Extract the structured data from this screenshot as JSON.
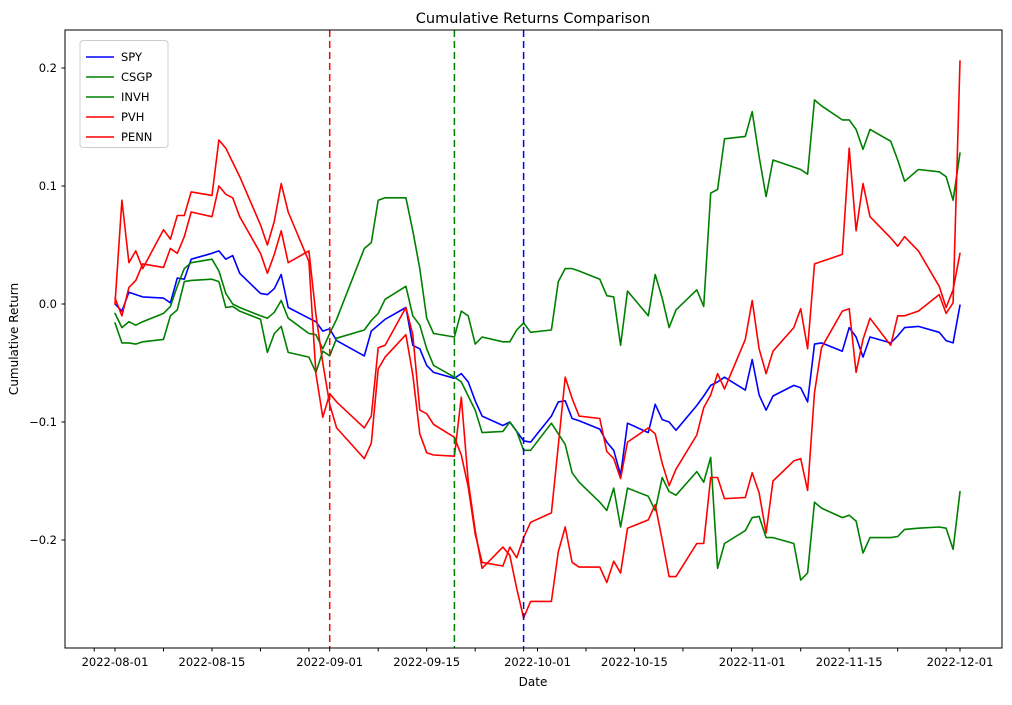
{
  "figure": {
    "title": "Cumulative Returns Comparison"
  },
  "chart_data": {
    "type": "line",
    "title": "Cumulative Returns Comparison",
    "xlabel": "Date",
    "ylabel": "Cumulative Return",
    "grid": false,
    "legend_position": "upper-left",
    "ylim": [
      -0.291,
      0.2304
    ],
    "xlim": [
      "2022-07-25",
      "2022-12-07"
    ],
    "yticks": [
      -0.2,
      -0.1,
      0.0,
      0.1,
      0.2
    ],
    "xticks_labeled": [
      "2022-08-01",
      "2022-08-15",
      "2022-09-01",
      "2022-09-15",
      "2022-10-01",
      "2022-10-15",
      "2022-11-01",
      "2022-11-15",
      "2022-12-01"
    ],
    "minor_tick_monthdays": [
      1,
      8,
      15,
      22,
      29
    ],
    "x": [
      "2022-08-01",
      "2022-08-02",
      "2022-08-03",
      "2022-08-04",
      "2022-08-05",
      "2022-08-08",
      "2022-08-09",
      "2022-08-10",
      "2022-08-11",
      "2022-08-12",
      "2022-08-15",
      "2022-08-16",
      "2022-08-17",
      "2022-08-18",
      "2022-08-19",
      "2022-08-22",
      "2022-08-23",
      "2022-08-24",
      "2022-08-25",
      "2022-08-26",
      "2022-08-29",
      "2022-08-30",
      "2022-08-31",
      "2022-09-01",
      "2022-09-02",
      "2022-09-06",
      "2022-09-07",
      "2022-09-08",
      "2022-09-09",
      "2022-09-12",
      "2022-09-13",
      "2022-09-14",
      "2022-09-15",
      "2022-09-16",
      "2022-09-19",
      "2022-09-20",
      "2022-09-21",
      "2022-09-22",
      "2022-09-23",
      "2022-09-26",
      "2022-09-27",
      "2022-09-28",
      "2022-09-29",
      "2022-09-30",
      "2022-10-03",
      "2022-10-04",
      "2022-10-05",
      "2022-10-06",
      "2022-10-07",
      "2022-10-10",
      "2022-10-11",
      "2022-10-12",
      "2022-10-13",
      "2022-10-14",
      "2022-10-17",
      "2022-10-18",
      "2022-10-19",
      "2022-10-20",
      "2022-10-21",
      "2022-10-24",
      "2022-10-25",
      "2022-10-26",
      "2022-10-27",
      "2022-10-28",
      "2022-10-31",
      "2022-11-01",
      "2022-11-02",
      "2022-11-03",
      "2022-11-04",
      "2022-11-07",
      "2022-11-08",
      "2022-11-09",
      "2022-11-10",
      "2022-11-11",
      "2022-11-14",
      "2022-11-15",
      "2022-11-16",
      "2022-11-17",
      "2022-11-18",
      "2022-11-21",
      "2022-11-22",
      "2022-11-23",
      "2022-11-25",
      "2022-11-28",
      "2022-11-29",
      "2022-11-30",
      "2022-12-01"
    ],
    "series": [
      {
        "name": "SPY",
        "color": "#0000ff",
        "values": [
          0.0,
          -0.006,
          0.01,
          0.008,
          0.006,
          0.005,
          0.001,
          0.022,
          0.021,
          0.038,
          0.043,
          0.045,
          0.038,
          0.041,
          0.026,
          0.009,
          0.008,
          0.013,
          0.025,
          -0.003,
          -0.012,
          -0.015,
          -0.023,
          -0.021,
          -0.031,
          -0.044,
          -0.023,
          -0.018,
          -0.013,
          -0.003,
          -0.035,
          -0.038,
          -0.052,
          -0.058,
          -0.063,
          -0.059,
          -0.066,
          -0.082,
          -0.095,
          -0.103,
          -0.1,
          -0.108,
          -0.116,
          -0.117,
          -0.095,
          -0.083,
          -0.082,
          -0.097,
          -0.099,
          -0.106,
          -0.117,
          -0.124,
          -0.145,
          -0.101,
          -0.109,
          -0.085,
          -0.098,
          -0.1,
          -0.107,
          -0.086,
          -0.078,
          -0.069,
          -0.066,
          -0.062,
          -0.073,
          -0.047,
          -0.077,
          -0.09,
          -0.078,
          -0.069,
          -0.071,
          -0.083,
          -0.034,
          -0.033,
          -0.04,
          -0.02,
          -0.028,
          -0.045,
          -0.028,
          -0.033,
          -0.027,
          -0.02,
          -0.019,
          -0.024,
          -0.031,
          -0.033,
          -0.001
        ]
      },
      {
        "name": "CSGP",
        "color": "#008000",
        "values": [
          -0.008,
          -0.02,
          -0.015,
          -0.018,
          -0.015,
          -0.008,
          -0.002,
          0.015,
          0.03,
          0.035,
          0.038,
          0.028,
          0.009,
          0.0,
          -0.003,
          -0.01,
          -0.012,
          -0.007,
          0.003,
          -0.012,
          -0.025,
          -0.026,
          -0.038,
          -0.025,
          -0.013,
          0.047,
          0.052,
          0.088,
          0.09,
          0.09,
          0.062,
          0.03,
          -0.012,
          -0.025,
          -0.028,
          -0.006,
          -0.01,
          -0.034,
          -0.028,
          -0.032,
          -0.032,
          -0.022,
          -0.016,
          -0.024,
          -0.022,
          0.019,
          0.03,
          0.03,
          0.028,
          0.021,
          0.007,
          0.006,
          -0.035,
          0.011,
          -0.01,
          0.025,
          0.005,
          -0.02,
          -0.005,
          0.012,
          -0.002,
          0.094,
          0.097,
          0.14,
          0.142,
          0.163,
          0.125,
          0.091,
          0.122,
          0.116,
          0.114,
          0.11,
          0.173,
          0.168,
          0.156,
          0.156,
          0.148,
          0.131,
          0.148,
          0.138,
          0.122,
          0.104,
          0.114,
          0.112,
          0.108,
          0.088,
          0.128
        ]
      },
      {
        "name": "INVH",
        "color": "#008000",
        "values": [
          -0.016,
          -0.033,
          -0.033,
          -0.034,
          -0.032,
          -0.03,
          -0.01,
          -0.005,
          0.019,
          0.02,
          0.021,
          0.019,
          -0.003,
          -0.002,
          -0.006,
          -0.013,
          -0.041,
          -0.025,
          -0.019,
          -0.041,
          -0.045,
          -0.058,
          -0.04,
          -0.044,
          -0.029,
          -0.022,
          -0.014,
          -0.008,
          0.004,
          0.015,
          -0.01,
          -0.018,
          -0.038,
          -0.052,
          -0.062,
          -0.066,
          -0.078,
          -0.09,
          -0.109,
          -0.108,
          -0.1,
          -0.108,
          -0.124,
          -0.124,
          -0.101,
          -0.11,
          -0.119,
          -0.143,
          -0.151,
          -0.168,
          -0.175,
          -0.156,
          -0.189,
          -0.156,
          -0.163,
          -0.175,
          -0.147,
          -0.159,
          -0.162,
          -0.142,
          -0.151,
          -0.13,
          -0.224,
          -0.203,
          -0.192,
          -0.181,
          -0.18,
          -0.198,
          -0.198,
          -0.203,
          -0.234,
          -0.228,
          -0.168,
          -0.173,
          -0.181,
          -0.179,
          -0.184,
          -0.211,
          -0.198,
          -0.198,
          -0.197,
          -0.191,
          -0.19,
          -0.189,
          -0.19,
          -0.208,
          -0.159
        ]
      },
      {
        "name": "PVH",
        "color": "#ff0000",
        "values": [
          0.005,
          -0.01,
          0.014,
          0.02,
          0.034,
          0.031,
          0.047,
          0.043,
          0.057,
          0.078,
          0.074,
          0.1,
          0.093,
          0.09,
          0.074,
          0.043,
          0.026,
          0.042,
          0.062,
          0.035,
          0.045,
          -0.009,
          -0.05,
          -0.085,
          -0.105,
          -0.131,
          -0.118,
          -0.055,
          -0.045,
          -0.026,
          -0.06,
          -0.11,
          -0.126,
          -0.128,
          -0.129,
          -0.079,
          -0.15,
          -0.192,
          -0.224,
          -0.206,
          -0.213,
          -0.241,
          -0.266,
          -0.252,
          -0.252,
          -0.21,
          -0.189,
          -0.219,
          -0.223,
          -0.223,
          -0.236,
          -0.218,
          -0.228,
          -0.19,
          -0.183,
          -0.17,
          -0.2,
          -0.231,
          -0.231,
          -0.203,
          -0.203,
          -0.147,
          -0.147,
          -0.165,
          -0.164,
          -0.143,
          -0.16,
          -0.194,
          -0.15,
          -0.133,
          -0.131,
          -0.158,
          -0.075,
          -0.037,
          -0.006,
          -0.004,
          -0.058,
          -0.03,
          -0.012,
          -0.035,
          -0.01,
          -0.01,
          -0.006,
          0.008,
          -0.008,
          0.001,
          0.206
        ]
      },
      {
        "name": "PENN",
        "color": "#ff0000",
        "values": [
          0.0,
          0.088,
          0.035,
          0.045,
          0.03,
          0.063,
          0.055,
          0.075,
          0.075,
          0.095,
          0.092,
          0.139,
          0.132,
          0.12,
          0.108,
          0.067,
          0.05,
          0.07,
          0.102,
          0.078,
          0.036,
          -0.059,
          -0.096,
          -0.076,
          -0.083,
          -0.105,
          -0.095,
          -0.037,
          -0.035,
          -0.003,
          -0.026,
          -0.09,
          -0.093,
          -0.102,
          -0.113,
          -0.128,
          -0.155,
          -0.195,
          -0.219,
          -0.222,
          -0.206,
          -0.215,
          -0.198,
          -0.185,
          -0.177,
          -0.12,
          -0.062,
          -0.08,
          -0.095,
          -0.097,
          -0.125,
          -0.131,
          -0.148,
          -0.117,
          -0.105,
          -0.11,
          -0.135,
          -0.154,
          -0.14,
          -0.111,
          -0.088,
          -0.077,
          -0.059,
          -0.072,
          -0.03,
          0.003,
          -0.038,
          -0.059,
          -0.04,
          -0.02,
          -0.004,
          -0.038,
          0.034,
          0.036,
          0.042,
          0.132,
          0.062,
          0.102,
          0.074,
          0.056,
          0.049,
          0.057,
          0.045,
          0.015,
          -0.003,
          0.012,
          0.043
        ]
      }
    ],
    "vlines": [
      {
        "date": "2022-09-01",
        "color": "#ff0000",
        "style": "dashed"
      },
      {
        "date": "2022-09-19",
        "color": "#008000",
        "style": "dashed"
      },
      {
        "date": "2022-09-29",
        "color": "#0000ff",
        "style": "dashed"
      }
    ]
  }
}
